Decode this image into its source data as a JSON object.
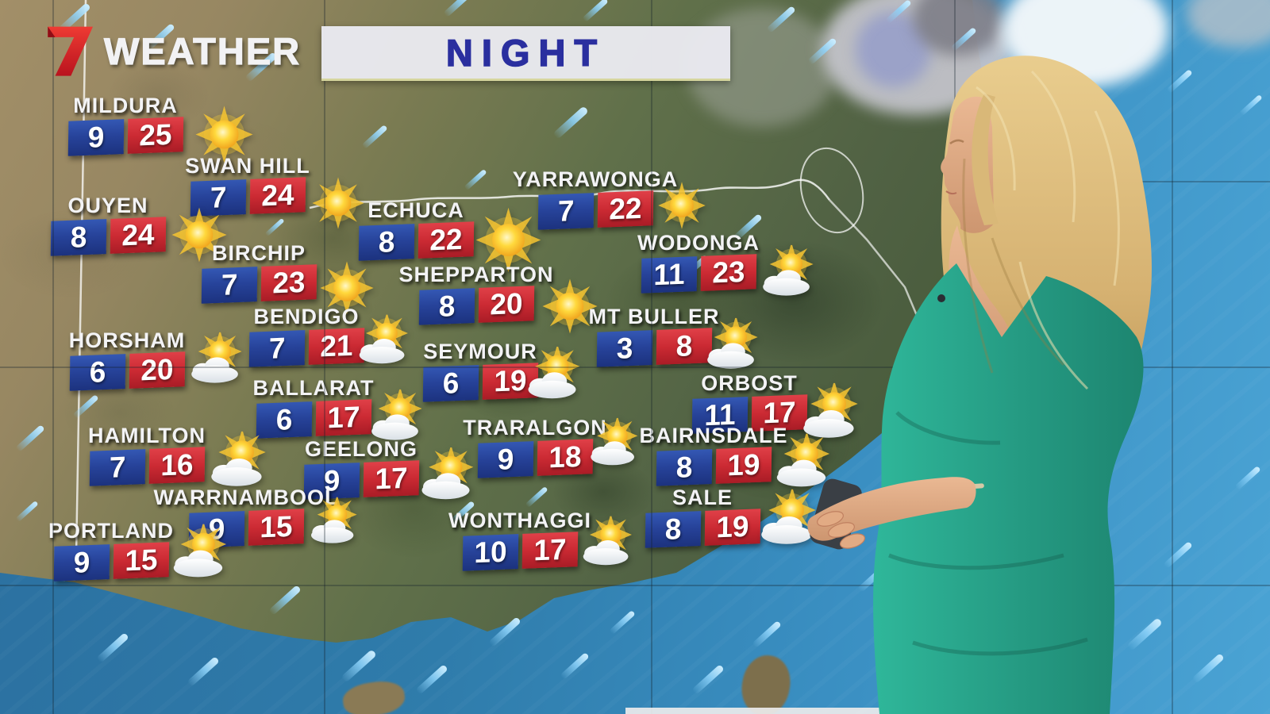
{
  "brand": {
    "network_glyph": "7",
    "wordmark": "WEATHER"
  },
  "banner": {
    "label": "NIGHT"
  },
  "colors": {
    "low_box": "#27439a",
    "high_box": "#cb2a33",
    "banner_bg": "#e9e9ef",
    "banner_text": "#2a2f9f",
    "logo_red": "#e02428",
    "sea": "#3a8fc2",
    "land_green": "#516244",
    "land_tan": "#a28f68",
    "dress_teal": "#29a78c"
  },
  "cities": [
    {
      "name": "MILDURA",
      "low": "9",
      "high": "25",
      "icon": "sunny"
    },
    {
      "name": "SWAN HILL",
      "low": "7",
      "high": "24",
      "icon": "sunny"
    },
    {
      "name": "OUYEN",
      "low": "8",
      "high": "24",
      "icon": "sunny"
    },
    {
      "name": "ECHUCA",
      "low": "8",
      "high": "22",
      "icon": "sunny"
    },
    {
      "name": "BIRCHIP",
      "low": "7",
      "high": "23",
      "icon": "sunny"
    },
    {
      "name": "YARRAWONGA",
      "low": "7",
      "high": "22",
      "icon": "sunny"
    },
    {
      "name": "WODONGA",
      "low": "11",
      "high": "23",
      "icon": "partly-cloudy"
    },
    {
      "name": "SHEPPARTON",
      "low": "8",
      "high": "20",
      "icon": "sunny"
    },
    {
      "name": "BENDIGO",
      "low": "7",
      "high": "21",
      "icon": "partly-cloudy"
    },
    {
      "name": "MT BULLER",
      "low": "3",
      "high": "8",
      "icon": "partly-cloudy"
    },
    {
      "name": "HORSHAM",
      "low": "6",
      "high": "20",
      "icon": "partly-cloudy"
    },
    {
      "name": "SEYMOUR",
      "low": "6",
      "high": "19",
      "icon": "partly-cloudy"
    },
    {
      "name": "BALLARAT",
      "low": "6",
      "high": "17",
      "icon": "partly-cloudy"
    },
    {
      "name": "ORBOST",
      "low": "11",
      "high": "17",
      "icon": "partly-cloudy"
    },
    {
      "name": "HAMILTON",
      "low": "7",
      "high": "16",
      "icon": "partly-cloudy"
    },
    {
      "name": "TRARALGON",
      "low": "9",
      "high": "18",
      "icon": "partly-cloudy"
    },
    {
      "name": "BAIRNSDALE",
      "low": "8",
      "high": "19",
      "icon": "partly-cloudy"
    },
    {
      "name": "GEELONG",
      "low": "9",
      "high": "17",
      "icon": "partly-cloudy"
    },
    {
      "name": "WARRNAMBOOL",
      "low": "9",
      "high": "15",
      "icon": "partly-cloudy"
    },
    {
      "name": "SALE",
      "low": "8",
      "high": "19",
      "icon": "partly-cloudy"
    },
    {
      "name": "PORTLAND",
      "low": "9",
      "high": "15",
      "icon": "partly-cloudy"
    },
    {
      "name": "WONTHAGGI",
      "low": "10",
      "high": "17",
      "icon": "partly-cloudy"
    }
  ]
}
